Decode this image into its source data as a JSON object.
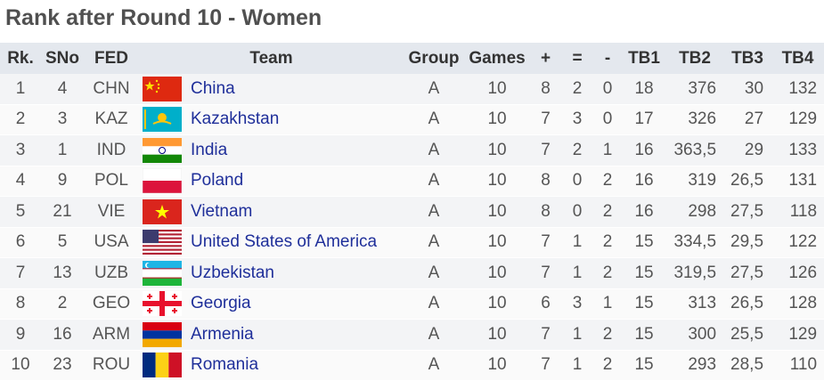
{
  "header": {
    "title": "Rank after Round 10 - Women"
  },
  "table": {
    "columns": [
      "Rk.",
      "SNo",
      "FED",
      "Team",
      "Group",
      "Games",
      "+",
      "=",
      "-",
      "TB1",
      "TB2",
      "TB3",
      "TB4"
    ],
    "rows": [
      [
        "1",
        "4",
        "CHN",
        "China",
        "A",
        "10",
        "8",
        "2",
        "0",
        "18",
        "376",
        "30",
        "132"
      ],
      [
        "2",
        "3",
        "KAZ",
        "Kazakhstan",
        "A",
        "10",
        "7",
        "3",
        "0",
        "17",
        "326",
        "27",
        "129"
      ],
      [
        "3",
        "1",
        "IND",
        "India",
        "A",
        "10",
        "7",
        "2",
        "1",
        "16",
        "363,5",
        "29",
        "133"
      ],
      [
        "4",
        "9",
        "POL",
        "Poland",
        "A",
        "10",
        "8",
        "0",
        "2",
        "16",
        "319",
        "26,5",
        "131"
      ],
      [
        "5",
        "21",
        "VIE",
        "Vietnam",
        "A",
        "10",
        "8",
        "0",
        "2",
        "16",
        "298",
        "27,5",
        "118"
      ],
      [
        "6",
        "5",
        "USA",
        "United States of America",
        "A",
        "10",
        "7",
        "1",
        "2",
        "15",
        "334,5",
        "29,5",
        "122"
      ],
      [
        "7",
        "13",
        "UZB",
        "Uzbekistan",
        "A",
        "10",
        "7",
        "1",
        "2",
        "15",
        "319,5",
        "27,5",
        "126"
      ],
      [
        "8",
        "2",
        "GEO",
        "Georgia",
        "A",
        "10",
        "6",
        "3",
        "1",
        "15",
        "313",
        "26,5",
        "128"
      ],
      [
        "9",
        "16",
        "ARM",
        "Armenia",
        "A",
        "10",
        "7",
        "1",
        "2",
        "15",
        "300",
        "25,5",
        "129"
      ],
      [
        "10",
        "23",
        "ROU",
        "Romania",
        "A",
        "10",
        "7",
        "1",
        "2",
        "15",
        "293",
        "28,5",
        "110"
      ]
    ]
  }
}
